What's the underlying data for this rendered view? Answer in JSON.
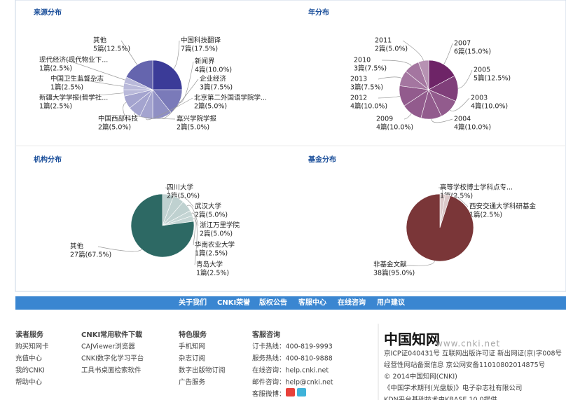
{
  "chart_data": [
    {
      "type": "pie",
      "title": "来源分布",
      "color": "#3b3b98",
      "categories": [
        "中国科技翻译",
        "新闻界",
        "企业经济",
        "北京第二外国语学院学...",
        "嘉兴学院学报",
        "中国西部科技",
        "新疆大学学报(哲学社...",
        "中国卫生监督杂志",
        "现代经济(现代物业下...",
        "其他"
      ],
      "values": [
        7,
        4,
        3,
        2,
        2,
        2,
        1,
        1,
        1,
        5
      ],
      "value_labels": [
        "7篇(17.5%)",
        "4篇(10.0%)",
        "3篇(7.5%)",
        "2篇(5.0%)",
        "2篇(5.0%)",
        "2篇(5.0%)",
        "1篇(2.5%)",
        "1篇(2.5%)",
        "1篇(2.5%)",
        "5篇(12.5%)"
      ]
    },
    {
      "type": "pie",
      "title": "年分布",
      "color": "#6e2467",
      "categories": [
        "2007",
        "2005",
        "2003",
        "2004",
        "2009",
        "2012",
        "2013",
        "2010",
        "2011"
      ],
      "values": [
        6,
        5,
        4,
        4,
        4,
        4,
        3,
        3,
        2
      ],
      "value_labels": [
        "6篇(15.0%)",
        "5篇(12.5%)",
        "4篇(10.0%)",
        "4篇(10.0%)",
        "4篇(10.0%)",
        "4篇(10.0%)",
        "3篇(7.5%)",
        "3篇(7.5%)",
        "2篇(5.0%)"
      ]
    },
    {
      "type": "pie",
      "title": "机构分布",
      "color": "#2d6964",
      "categories": [
        "四川大学",
        "武汉大学",
        "浙江万里学院",
        "华南农业大学",
        "青岛大学",
        "其他"
      ],
      "values": [
        2,
        2,
        2,
        1,
        1,
        27
      ],
      "value_labels": [
        "2篇(5.0%)",
        "2篇(5.0%)",
        "2篇(5.0%)",
        "1篇(2.5%)",
        "1篇(2.5%)",
        "27篇(67.5%)"
      ]
    },
    {
      "type": "pie",
      "title": "基金分布",
      "color": "#7a3638",
      "categories": [
        "高等学校博士学科点专...",
        "西安交通大学科研基金",
        "非基金文献"
      ],
      "values": [
        1,
        1,
        38
      ],
      "value_labels": [
        "1篇(2.5%)",
        "1篇(2.5%)",
        "38篇(95.0%)"
      ]
    }
  ],
  "nav": [
    "关于我们",
    "CNKI荣誉",
    "版权公告",
    "客服中心",
    "在线咨询",
    "用户建议"
  ],
  "footer": {
    "columns": [
      [
        "读者服务",
        "购买知网卡",
        "充值中心",
        "我的CNKI",
        "帮助中心"
      ],
      [
        "CNKI常用软件下载",
        "CAJViewer浏览器",
        "CNKI数字化学习平台",
        "工具书桌面检索软件"
      ],
      [
        "特色服务",
        "手机知网",
        "杂志订阅",
        "数字出版物订阅",
        "广告服务"
      ],
      [
        "客服咨询",
        "订卡热线：400-819-9993",
        "服务热线：400-810-9888",
        "在线咨询：help.cnki.net",
        "邮件咨询：help@cnki.net",
        "客服微博："
      ]
    ],
    "logo": "中国知网",
    "site": "www.cnki.net",
    "info": [
      "京ICP证040431号 互联网出版许可证 新出网证(京)字008号",
      "经营性网站备案信息 京公网安备11010802014875号",
      "© 2014中国知网(CNKI)",
      "《中国学术期刊(光盘版)》电子杂志社有限公司",
      "KDN平台基础技术由KBASE 10.0提供"
    ]
  }
}
